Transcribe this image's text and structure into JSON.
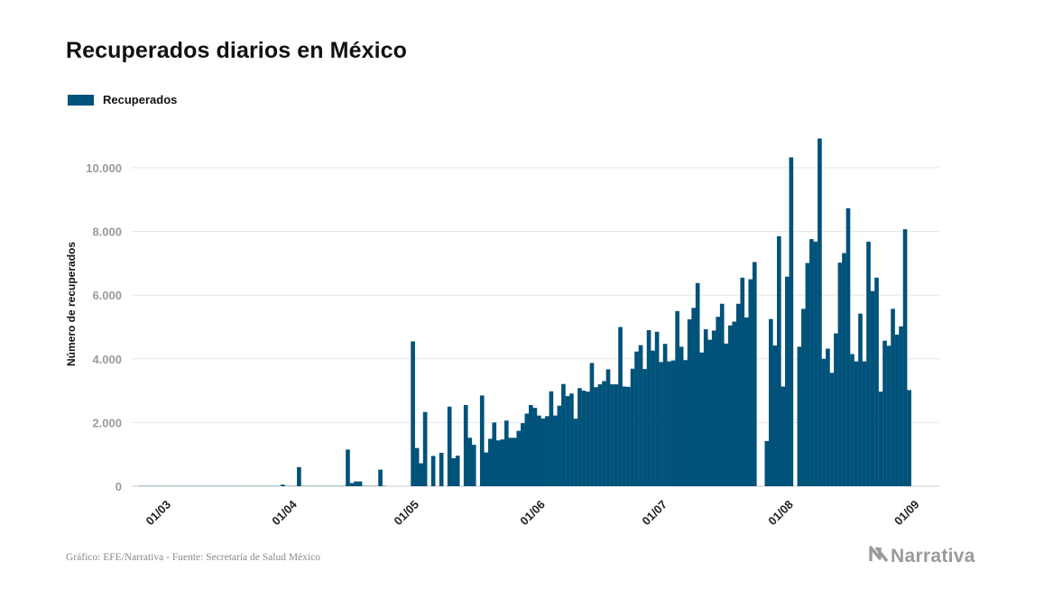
{
  "title": "Recuperados diarios en México",
  "legend": {
    "label": "Recuperados"
  },
  "source": "Gráfico: EFE/Narrativa - Fuente: Secretaría de Salud México",
  "logo": {
    "text": "Narrativa",
    "icon": "narrativa-n-icon"
  },
  "colors": {
    "bar": "#00527a",
    "grid": "#e6e6e6",
    "tick": "#9a9a9a"
  },
  "chart_data": {
    "type": "bar",
    "title": "Recuperados diarios en México",
    "xlabel": "",
    "ylabel": "Número de recuperados",
    "ylim": [
      0,
      11200
    ],
    "x_start": "2020-02-25",
    "y_ticks": [
      {
        "value": 0,
        "label": "0"
      },
      {
        "value": 2000,
        "label": "2.000"
      },
      {
        "value": 4000,
        "label": "4.000"
      },
      {
        "value": 6000,
        "label": "6.000"
      },
      {
        "value": 8000,
        "label": "8.000"
      },
      {
        "value": 10000,
        "label": "10.000"
      }
    ],
    "x_ticks": [
      {
        "date": "2020-03-01",
        "label": "01/03"
      },
      {
        "date": "2020-04-01",
        "label": "01/04"
      },
      {
        "date": "2020-05-01",
        "label": "01/05"
      },
      {
        "date": "2020-06-01",
        "label": "01/06"
      },
      {
        "date": "2020-07-01",
        "label": "01/07"
      },
      {
        "date": "2020-08-01",
        "label": "01/08"
      },
      {
        "date": "2020-09-01",
        "label": "01/09"
      }
    ],
    "grid": true,
    "legend_position": "top-left",
    "series": [
      {
        "name": "Recuperados",
        "values": [
          0,
          0,
          0,
          0,
          0,
          0,
          0,
          0,
          0,
          0,
          0,
          0,
          0,
          0,
          0,
          0,
          0,
          0,
          0,
          0,
          0,
          0,
          0,
          0,
          0,
          0,
          0,
          0,
          0,
          0,
          0,
          0,
          0,
          0,
          0,
          50,
          0,
          0,
          0,
          600,
          0,
          0,
          0,
          0,
          0,
          0,
          0,
          0,
          0,
          0,
          0,
          1150,
          100,
          150,
          150,
          0,
          0,
          0,
          0,
          520,
          0,
          0,
          0,
          0,
          0,
          0,
          0,
          4550,
          1200,
          720,
          2330,
          0,
          950,
          0,
          1050,
          0,
          2500,
          880,
          960,
          0,
          2550,
          1520,
          1300,
          0,
          2850,
          1060,
          1490,
          2000,
          1440,
          1470,
          2060,
          1520,
          1520,
          1740,
          1980,
          2280,
          2550,
          2460,
          2220,
          2130,
          2200,
          2980,
          2220,
          2530,
          3210,
          2830,
          2910,
          2120,
          3080,
          3000,
          2970,
          3870,
          3110,
          3200,
          3300,
          3670,
          3200,
          3200,
          5000,
          3130,
          3120,
          3690,
          4230,
          4430,
          3680,
          4900,
          4260,
          4850,
          3900,
          4470,
          3920,
          3950,
          5500,
          4380,
          3960,
          5240,
          5600,
          6380,
          4200,
          4930,
          4600,
          4890,
          5320,
          5730,
          4480,
          5050,
          5170,
          5730,
          6550,
          5300,
          6500,
          7040,
          0,
          0,
          1420,
          5250,
          4420,
          7850,
          3130,
          6580,
          10330,
          0,
          4380,
          5570,
          7010,
          7760,
          7680,
          10920,
          4000,
          4320,
          3560,
          4800,
          7020,
          7320,
          8730,
          4150,
          3920,
          5420,
          3920,
          7680,
          6130,
          6550,
          2970,
          4570,
          4410,
          5570,
          4760,
          5020,
          8070,
          3020
        ]
      }
    ]
  }
}
